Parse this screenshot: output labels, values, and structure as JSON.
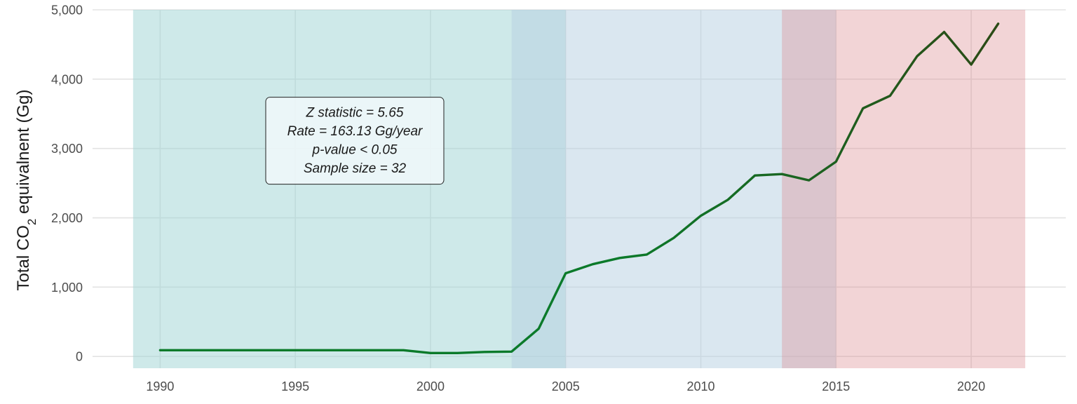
{
  "chart_data": {
    "type": "line",
    "ylabel": {
      "main": "Total CO",
      "subscript": "2",
      "rest": " equivalnent (Gg)"
    },
    "xlim": [
      1987.5,
      2023.5
    ],
    "ylim": [
      -170,
      5000
    ],
    "x_ticks": [
      1990,
      1995,
      2000,
      2005,
      2010,
      2015,
      2020
    ],
    "y_ticks": [
      0,
      1000,
      2000,
      3000,
      4000,
      5000
    ],
    "y_tick_labels": [
      "0",
      "1,000",
      "2,000",
      "3,000",
      "4,000",
      "5,000"
    ],
    "grid": true,
    "periods": [
      {
        "from": 1989,
        "to": 2005,
        "color": "#9dd3d3",
        "opacity": 0.5
      },
      {
        "from": 2003,
        "to": 2015,
        "color": "#b5cfe2",
        "opacity": 0.5
      },
      {
        "from": 2013,
        "to": 2022,
        "color": "#dd8d94",
        "opacity": 0.38
      }
    ],
    "series": [
      {
        "color_start": "#0b7a2a",
        "color_end": "#2b4b16",
        "x": [
          1990,
          1991,
          1992,
          1993,
          1994,
          1995,
          1996,
          1997,
          1998,
          1999,
          2000,
          2001,
          2002,
          2003,
          2004,
          2005,
          2006,
          2007,
          2008,
          2009,
          2010,
          2011,
          2012,
          2013,
          2014,
          2015,
          2016,
          2017,
          2018,
          2019,
          2020,
          2021
        ],
        "y": [
          90,
          90,
          90,
          90,
          90,
          90,
          90,
          90,
          90,
          90,
          50,
          50,
          65,
          70,
          400,
          1200,
          1330,
          1420,
          1470,
          1710,
          2030,
          2260,
          2610,
          2630,
          2540,
          2810,
          3580,
          3760,
          4330,
          4680,
          4210,
          4800
        ]
      }
    ],
    "annotation": {
      "lines": [
        "Z statistic = 5.65",
        "Rate = 163.13 Gg/year",
        "p-value < 0.05",
        "Sample size = 32"
      ],
      "center": {
        "x": 1997.2,
        "y": 3000
      }
    }
  }
}
